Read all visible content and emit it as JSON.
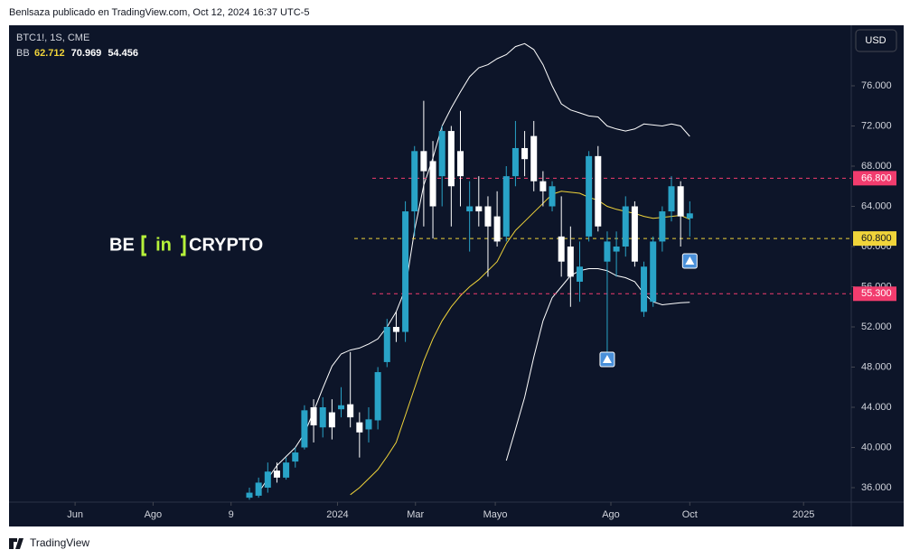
{
  "chart_data": {
    "type": "candlestick",
    "publisher_line": "Benlsaza publicado en TradingView.com, Oct 12, 2024 16:37 UTC-5",
    "symbol": "BTC1!, 1S, CME",
    "indicator": "BB",
    "indicator_values": [
      "62.712",
      "70.969",
      "54.456"
    ],
    "indicator_value_colors": [
      "#f0d43a",
      "#ffffff",
      "#ffffff"
    ],
    "currency": "USD",
    "logo": [
      "BE",
      "in",
      "CRYPTO"
    ],
    "footer": "TradingView",
    "up_color": "#29a3c7",
    "down_color": "#ffffff",
    "x": [
      0,
      1,
      2,
      3,
      4,
      5,
      6,
      7,
      8,
      9,
      10,
      11,
      12,
      13,
      14,
      15,
      16,
      17,
      18,
      19,
      20,
      21,
      22,
      23,
      24,
      25,
      26,
      27,
      28,
      29,
      30,
      31,
      32,
      33,
      34,
      35,
      36,
      37,
      38,
      39,
      40,
      41,
      42,
      43,
      44,
      45,
      46,
      47,
      48
    ],
    "open": [
      35000,
      35200,
      36000,
      37700,
      37000,
      38600,
      40000,
      44000,
      42000,
      43500,
      43800,
      44300,
      42500,
      41800,
      42700,
      48500,
      52000,
      51500,
      63500,
      69500,
      68500,
      67000,
      71500,
      69500,
      63500,
      64000,
      64000,
      63000,
      61000,
      67000,
      69800,
      71000,
      66500,
      64000,
      61000,
      60000,
      56500,
      61000,
      69000,
      58500,
      59500,
      60000,
      64000,
      53500,
      54500,
      60500,
      63500,
      66000,
      62800
    ],
    "high": [
      36000,
      37000,
      38500,
      38500,
      39000,
      40000,
      44200,
      44800,
      45000,
      44800,
      46000,
      49500,
      43500,
      44000,
      48000,
      52800,
      53500,
      64500,
      70000,
      74500,
      70500,
      72000,
      72000,
      73500,
      66500,
      67000,
      65000,
      65500,
      68000,
      72500,
      71500,
      72500,
      67500,
      66500,
      65000,
      62000,
      60500,
      69500,
      70000,
      61500,
      61500,
      65000,
      64500,
      58500,
      61000,
      64000,
      67000,
      66500,
      64500
    ],
    "low": [
      34800,
      35000,
      35500,
      36500,
      36800,
      38000,
      39800,
      40500,
      41000,
      40800,
      43000,
      42000,
      39000,
      40500,
      41800,
      48000,
      50500,
      50500,
      61000,
      62000,
      60800,
      64000,
      62000,
      64000,
      59500,
      62000,
      57000,
      60000,
      60500,
      66000,
      67000,
      65500,
      64000,
      63500,
      57000,
      54000,
      54500,
      60500,
      61500,
      48500,
      57000,
      59000,
      58000,
      53000,
      54000,
      59500,
      62500,
      60000,
      61000
    ],
    "close": [
      35500,
      36500,
      37600,
      37000,
      38500,
      39500,
      43700,
      42200,
      44000,
      42000,
      44200,
      43000,
      41500,
      42800,
      47500,
      52000,
      51500,
      63500,
      69500,
      67500,
      64000,
      71500,
      66000,
      67000,
      64000,
      63500,
      62000,
      60500,
      67000,
      69800,
      68700,
      66500,
      65500,
      66000,
      58500,
      57000,
      58000,
      69000,
      62000,
      60500,
      60000,
      64000,
      58500,
      58000,
      60500,
      63500,
      66000,
      63000,
      63300
    ],
    "bands": {
      "upper_color": "#ffffff",
      "middle_color": "#f0d43a",
      "lower_color": "#ffffff",
      "upper": [
        null,
        35500,
        36900,
        38200,
        39100,
        40000,
        41400,
        43600,
        45900,
        48100,
        49300,
        49700,
        49900,
        50300,
        50800,
        52000,
        53500,
        55800,
        61600,
        66100,
        68800,
        72000,
        73800,
        75400,
        76900,
        77800,
        78100,
        78700,
        79100,
        79900,
        80200,
        79600,
        78100,
        76000,
        74200,
        73600,
        73300,
        73000,
        72900,
        72000,
        71700,
        71500,
        71700,
        72200,
        72100,
        72000,
        72200,
        72000,
        70969
      ],
      "middle": [
        null,
        null,
        null,
        null,
        null,
        null,
        null,
        null,
        null,
        null,
        null,
        35300,
        36000,
        36900,
        37800,
        39100,
        40500,
        43200,
        45900,
        48600,
        50800,
        52600,
        54000,
        55100,
        56000,
        56700,
        57600,
        58500,
        60300,
        61600,
        62500,
        63400,
        64300,
        65200,
        65500,
        65400,
        65300,
        64900,
        64600,
        64000,
        63700,
        63500,
        63300,
        63000,
        62800,
        62900,
        63000,
        63100,
        62712
      ],
      "lower": [
        null,
        null,
        null,
        null,
        null,
        null,
        null,
        null,
        null,
        null,
        null,
        null,
        null,
        null,
        null,
        null,
        null,
        null,
        null,
        null,
        null,
        null,
        null,
        null,
        null,
        null,
        null,
        null,
        38700,
        41800,
        45000,
        49000,
        52600,
        54900,
        56000,
        57100,
        57600,
        57800,
        57800,
        57600,
        57100,
        56900,
        56500,
        55300,
        54500,
        54200,
        54300,
        54400,
        54456
      ]
    },
    "levels": [
      {
        "value": 66800,
        "label": "66.800",
        "color": "#f23c6e"
      },
      {
        "value": 60800,
        "label": "60.800",
        "color": "#f0d43a"
      },
      {
        "value": 55300,
        "label": "55.300",
        "color": "#f23c6e"
      }
    ],
    "signals": [
      {
        "x": 39,
        "y": 48760
      },
      {
        "x": 48,
        "y": 58560
      }
    ],
    "signal_color": "#4a90d9",
    "xlim": [
      -26.2,
      65.6
    ],
    "xticks": [
      {
        "value": -19.0,
        "label": "Jun"
      },
      {
        "value": -10.5,
        "label": "Ago"
      },
      {
        "value": -2.0,
        "label": "9"
      },
      {
        "value": 9.6,
        "label": "2024"
      },
      {
        "value": 18.1,
        "label": "Mar"
      },
      {
        "value": 26.8,
        "label": "Mayo"
      },
      {
        "value": 39.4,
        "label": "Ago"
      },
      {
        "value": 48,
        "label": "Oct"
      },
      {
        "value": 60.4,
        "label": "2025"
      }
    ],
    "ylim": [
      34562,
      82022
    ],
    "yticks": [
      {
        "value": 36000,
        "label": "36.000"
      },
      {
        "value": 40000,
        "label": "40.000"
      },
      {
        "value": 44000,
        "label": "44.000"
      },
      {
        "value": 48000,
        "label": "48.000"
      },
      {
        "value": 52000,
        "label": "52.000"
      },
      {
        "value": 56000,
        "label": "56.000"
      },
      {
        "value": 60000,
        "label": "60.000"
      },
      {
        "value": 64000,
        "label": "64.000"
      },
      {
        "value": 68000,
        "label": "68.000"
      },
      {
        "value": 72000,
        "label": "72.000"
      },
      {
        "value": 76000,
        "label": "76.000"
      }
    ]
  }
}
